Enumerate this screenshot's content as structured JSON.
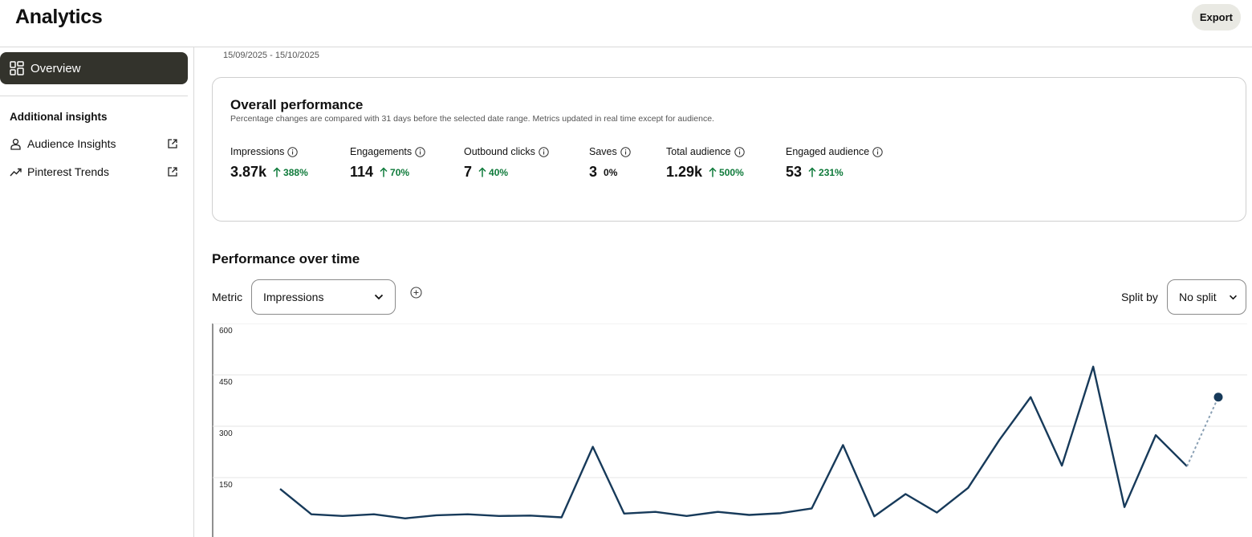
{
  "header": {
    "title": "Analytics",
    "export_label": "Export"
  },
  "sidebar": {
    "overview_label": "Overview",
    "section_heading": "Additional insights",
    "links": [
      {
        "label": "Audience Insights",
        "icon": "person-icon"
      },
      {
        "label": "Pinterest Trends",
        "icon": "trend-icon"
      }
    ]
  },
  "date_range": "15/09/2025 - 15/10/2025",
  "overall": {
    "title": "Overall performance",
    "subtitle": "Percentage changes are compared with 31 days before the selected date range. Metrics updated in real time except for audience.",
    "metrics": [
      {
        "label": "Impressions",
        "value": "3.87k",
        "change": "388%",
        "direction": "up"
      },
      {
        "label": "Engagements",
        "value": "114",
        "change": "70%",
        "direction": "up"
      },
      {
        "label": "Outbound clicks",
        "value": "7",
        "change": "40%",
        "direction": "up"
      },
      {
        "label": "Saves",
        "value": "3",
        "change": "0%",
        "direction": "none"
      },
      {
        "label": "Total audience",
        "value": "1.29k",
        "change": "500%",
        "direction": "up"
      },
      {
        "label": "Engaged audience",
        "value": "53",
        "change": "231%",
        "direction": "up"
      }
    ]
  },
  "performance": {
    "title": "Performance over time",
    "metric_label": "Metric",
    "metric_value": "Impressions",
    "split_label": "Split by",
    "split_value": "No split"
  },
  "colors": {
    "accent_dark": "#33332c",
    "positive": "#0e7a3a",
    "line": "#173a5a"
  },
  "chart_data": {
    "type": "line",
    "title": "",
    "xlabel": "",
    "ylabel": "",
    "ylim": [
      0,
      600
    ],
    "y_ticks": [
      150,
      300,
      450,
      600
    ],
    "grid": true,
    "series": [
      {
        "values": [
          117,
          43,
          38,
          43,
          31,
          40,
          43,
          38,
          39,
          34,
          240,
          45,
          50,
          38,
          50,
          41,
          46,
          60,
          245,
          37,
          102,
          48,
          120,
          260,
          385,
          185,
          474,
          64,
          274,
          183,
          385
        ],
        "last_point_projected": true
      }
    ]
  }
}
